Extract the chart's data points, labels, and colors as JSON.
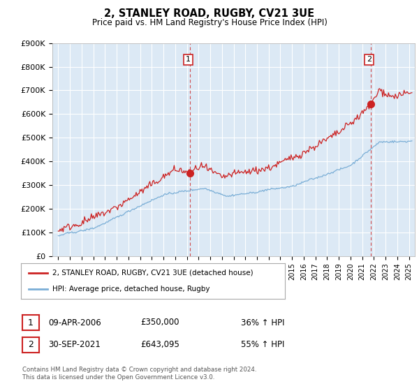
{
  "title": "2, STANLEY ROAD, RUGBY, CV21 3UE",
  "subtitle": "Price paid vs. HM Land Registry's House Price Index (HPI)",
  "legend_line1": "2, STANLEY ROAD, RUGBY, CV21 3UE (detached house)",
  "legend_line2": "HPI: Average price, detached house, Rugby",
  "footnote": "Contains HM Land Registry data © Crown copyright and database right 2024.\nThis data is licensed under the Open Government Licence v3.0.",
  "sale1_date": "09-APR-2006",
  "sale1_price": "£350,000",
  "sale1_hpi": "36% ↑ HPI",
  "sale2_date": "30-SEP-2021",
  "sale2_price": "£643,095",
  "sale2_hpi": "55% ↑ HPI",
  "red_color": "#cc2222",
  "blue_color": "#7aaed6",
  "chart_bg": "#dce9f5",
  "grid_color": "#ffffff",
  "bg_color": "#ffffff",
  "sale1_x": 2006.27,
  "sale1_y": 350000,
  "sale2_x": 2021.75,
  "sale2_y": 643095,
  "ylim": [
    0,
    900000
  ],
  "xlim": [
    1994.5,
    2025.5
  ]
}
